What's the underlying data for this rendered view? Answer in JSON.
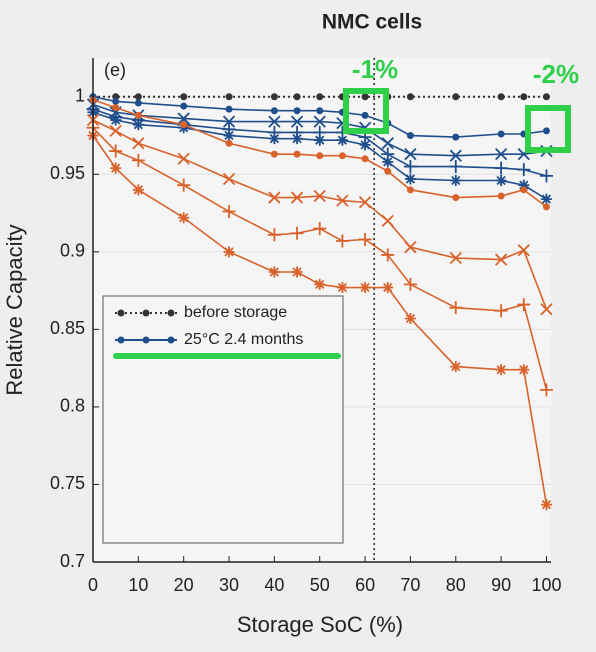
{
  "chart_data": {
    "type": "line",
    "title": "NMC cells",
    "panel_label": "(e)",
    "x_label": "Storage SoC (%)",
    "y_label": "Relative Capacity",
    "x": [
      0,
      5,
      10,
      20,
      30,
      40,
      45,
      50,
      55,
      60,
      65,
      70,
      80,
      90,
      95,
      100
    ],
    "xlim": [
      0,
      101
    ],
    "ylim": [
      0.7,
      1.025
    ],
    "xticks": [
      0,
      10,
      20,
      30,
      40,
      50,
      60,
      70,
      80,
      90,
      100
    ],
    "yticks": [
      0.7,
      0.75,
      0.8,
      0.85,
      0.9,
      0.95,
      1
    ],
    "grid": true,
    "reference_line": {
      "x": 62
    },
    "annotations": [
      "-1%",
      "-2%"
    ],
    "series": [
      {
        "name": "before storage",
        "color": "#333333",
        "marker": "o",
        "dash": true,
        "values": [
          1,
          1,
          1,
          1,
          1,
          1,
          1,
          1,
          1,
          1,
          1,
          1,
          1,
          1,
          1,
          1
        ]
      },
      {
        "name": "25°C  2.4 months",
        "color": "#1f4e8c",
        "marker": "o",
        "values": [
          1,
          0.997,
          0.996,
          0.994,
          0.992,
          0.991,
          0.991,
          0.991,
          0.99,
          0.988,
          0.983,
          0.975,
          0.974,
          0.976,
          0.976,
          0.978
        ]
      },
      {
        "color": "#1f4e8c",
        "marker": "x",
        "values": [
          0.995,
          0.99,
          0.988,
          0.986,
          0.984,
          0.984,
          0.984,
          0.984,
          0.983,
          0.98,
          0.97,
          0.963,
          0.962,
          0.963,
          0.963,
          0.965
        ]
      },
      {
        "color": "#1f4e8c",
        "marker": "+",
        "values": [
          0.992,
          0.987,
          0.985,
          0.982,
          0.979,
          0.977,
          0.977,
          0.977,
          0.977,
          0.974,
          0.963,
          0.955,
          0.955,
          0.954,
          0.953,
          0.949
        ]
      },
      {
        "color": "#1f4e8c",
        "marker": "*",
        "values": [
          0.99,
          0.985,
          0.982,
          0.98,
          0.975,
          0.973,
          0.973,
          0.972,
          0.972,
          0.969,
          0.958,
          0.947,
          0.946,
          0.946,
          0.943,
          0.934
        ]
      },
      {
        "color": "#d9622b",
        "marker": "o",
        "values": [
          0.998,
          0.993,
          0.988,
          0.982,
          0.97,
          0.963,
          0.963,
          0.962,
          0.962,
          0.96,
          0.952,
          0.94,
          0.935,
          0.936,
          0.94,
          0.929
        ]
      },
      {
        "color": "#d9622b",
        "marker": "x",
        "values": [
          0.985,
          0.978,
          0.97,
          0.96,
          0.947,
          0.935,
          0.935,
          0.936,
          0.933,
          0.932,
          0.92,
          0.903,
          0.896,
          0.895,
          0.901,
          0.863
        ]
      },
      {
        "color": "#d9622b",
        "marker": "+",
        "values": [
          0.98,
          0.965,
          0.959,
          0.943,
          0.926,
          0.911,
          0.912,
          0.915,
          0.907,
          0.908,
          0.898,
          0.879,
          0.864,
          0.862,
          0.866,
          0.811
        ]
      },
      {
        "color": "#d9622b",
        "marker": "*",
        "values": [
          0.975,
          0.954,
          0.94,
          0.922,
          0.9,
          0.887,
          0.887,
          0.879,
          0.877,
          0.877,
          0.877,
          0.857,
          0.826,
          0.824,
          0.824,
          0.737
        ]
      }
    ]
  }
}
